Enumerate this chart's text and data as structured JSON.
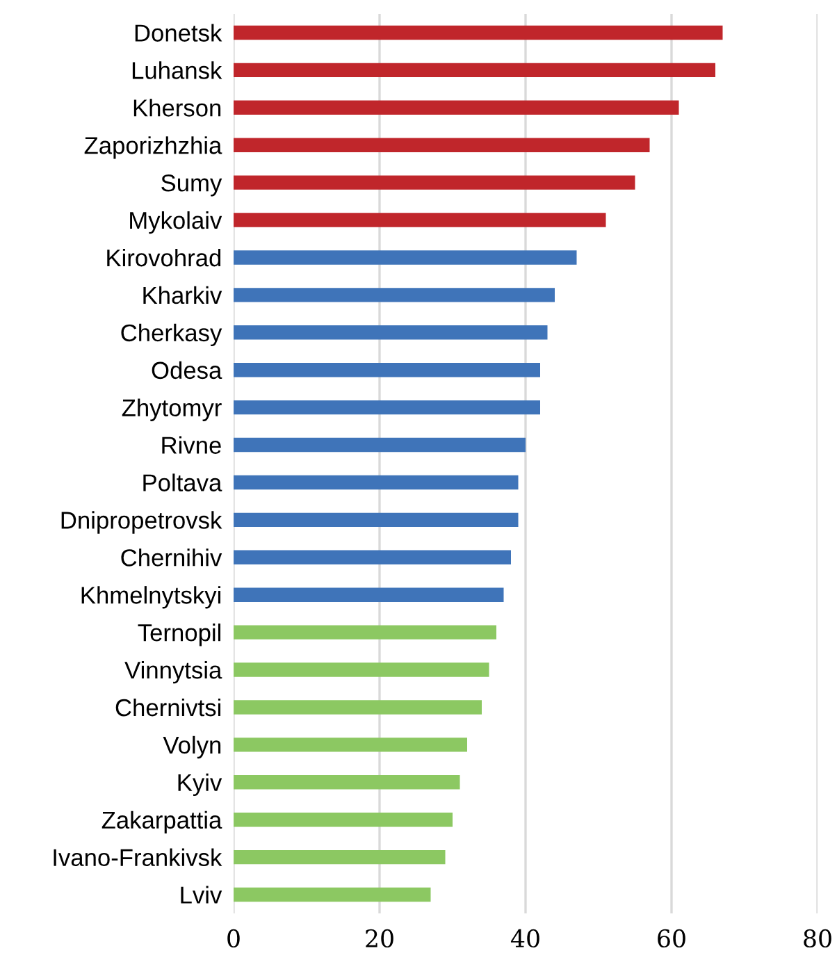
{
  "chart_data": {
    "type": "bar",
    "orientation": "horizontal",
    "categories": [
      "Donetsk",
      "Luhansk",
      "Kherson",
      "Zaporizhzhia",
      "Sumy",
      "Mykolaiv",
      "Kirovohrad",
      "Kharkiv",
      "Cherkasy",
      "Odesa",
      "Zhytomyr",
      "Rivne",
      "Poltava",
      "Dnipropetrovsk",
      "Chernihiv",
      "Khmelnytskyi",
      "Ternopil",
      "Vinnytsia",
      "Chernivtsi",
      "Volyn",
      "Kyiv",
      "Zakarpattia",
      "Ivano-Frankivsk",
      "Lviv"
    ],
    "values": [
      67,
      66,
      61,
      57,
      55,
      51,
      47,
      44,
      43,
      42,
      42,
      40,
      39,
      39,
      38,
      37,
      36,
      35,
      34,
      32,
      31,
      30,
      29,
      27
    ],
    "colors": [
      "#c0262b",
      "#c0262b",
      "#c0262b",
      "#c0262b",
      "#c0262b",
      "#c0262b",
      "#3f74b9",
      "#3f74b9",
      "#3f74b9",
      "#3f74b9",
      "#3f74b9",
      "#3f74b9",
      "#3f74b9",
      "#3f74b9",
      "#3f74b9",
      "#3f74b9",
      "#8cc862",
      "#8cc862",
      "#8cc862",
      "#8cc862",
      "#8cc862",
      "#8cc862",
      "#8cc862",
      "#8cc862"
    ],
    "xlim": [
      0,
      80
    ],
    "xticks": [
      0,
      20,
      40,
      60,
      80
    ],
    "grid": "x"
  }
}
